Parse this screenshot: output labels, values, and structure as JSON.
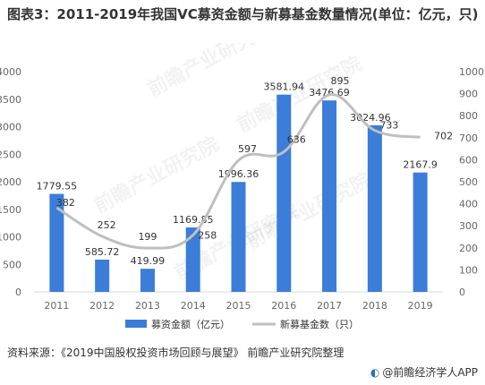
{
  "title": "图表3：2011-2019年我国VC募资金额与新募基金数量情况(单位：亿元，只)",
  "source": "资料来源：《2019中国股权投资市场回顾与展望》 前瞻产业研究院整理",
  "brand": "@前瞻经济学人APP",
  "watermark": "前瞻产业研究院",
  "colors": {
    "bar": "#3b7dd8",
    "line": "#bfbfbf",
    "axis": "#666666"
  },
  "chart_data": {
    "type": "bar+line",
    "categories": [
      "2011",
      "2012",
      "2013",
      "2014",
      "2015",
      "2016",
      "2017",
      "2018",
      "2019"
    ],
    "series": [
      {
        "name": "募资金额（亿元）",
        "type": "bar",
        "axis": "left",
        "values": [
          1779.55,
          585.72,
          419.99,
          1169.85,
          1996.36,
          3581.94,
          3476.69,
          3024.96,
          2167.9
        ]
      },
      {
        "name": "新募基金数（只）",
        "type": "line",
        "axis": "right",
        "values": [
          382,
          252,
          199,
          258,
          597,
          636,
          895,
          733,
          702
        ]
      }
    ],
    "y_left": {
      "min": 0,
      "max": 4000,
      "ticks": [
        0,
        500,
        1000,
        1500,
        2000,
        2500,
        3000,
        3500,
        4000
      ]
    },
    "y_right": {
      "min": 0,
      "max": 1000,
      "ticks": [
        0,
        100,
        200,
        300,
        400,
        500,
        600,
        700,
        800,
        900,
        1000
      ]
    },
    "grid": false,
    "legend": "bottom"
  }
}
